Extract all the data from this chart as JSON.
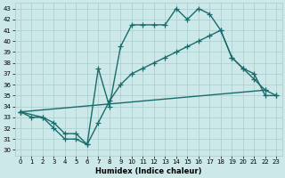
{
  "xlabel": "Humidex (Indice chaleur)",
  "ylabel": "",
  "bg_color": "#cce8e8",
  "line_color": "#1a6b6b",
  "grid_color": "#a8cccc",
  "xlim": [
    -0.5,
    23.5
  ],
  "ylim": [
    29.5,
    43.5
  ],
  "yticks": [
    30,
    31,
    32,
    33,
    34,
    35,
    36,
    37,
    38,
    39,
    40,
    41,
    42,
    43
  ],
  "xticks": [
    0,
    1,
    2,
    3,
    4,
    5,
    6,
    7,
    8,
    9,
    10,
    11,
    12,
    13,
    14,
    15,
    16,
    17,
    18,
    19,
    20,
    21,
    22,
    23
  ],
  "line1_x": [
    0,
    1,
    2,
    3,
    4,
    5,
    6,
    7,
    8,
    9,
    10,
    11,
    12,
    13,
    14,
    15,
    16,
    17,
    18,
    19,
    20,
    21,
    22
  ],
  "line1_y": [
    33.5,
    33.0,
    33.0,
    32.0,
    31.0,
    31.0,
    30.5,
    37.5,
    34.0,
    39.5,
    41.5,
    41.5,
    41.5,
    41.5,
    43.0,
    42.0,
    43.0,
    42.5,
    41.0,
    38.5,
    37.5,
    36.5,
    35.5
  ],
  "line2_x": [
    0,
    2,
    3,
    4,
    5,
    6,
    7,
    8,
    9,
    10,
    11,
    12,
    13,
    14,
    15,
    16,
    17,
    18,
    19,
    20,
    21,
    22,
    23
  ],
  "line2_y": [
    33.5,
    33.0,
    32.5,
    31.5,
    31.5,
    30.5,
    32.5,
    34.5,
    36.0,
    37.0,
    37.5,
    38.0,
    38.5,
    39.0,
    39.5,
    40.0,
    40.5,
    41.0,
    38.5,
    37.5,
    37.0,
    35.0,
    35.0
  ],
  "line3_x": [
    0,
    22,
    23
  ],
  "line3_y": [
    33.5,
    35.5,
    35.0
  ],
  "marker": "+",
  "markersize": 4,
  "linewidth": 1.0
}
